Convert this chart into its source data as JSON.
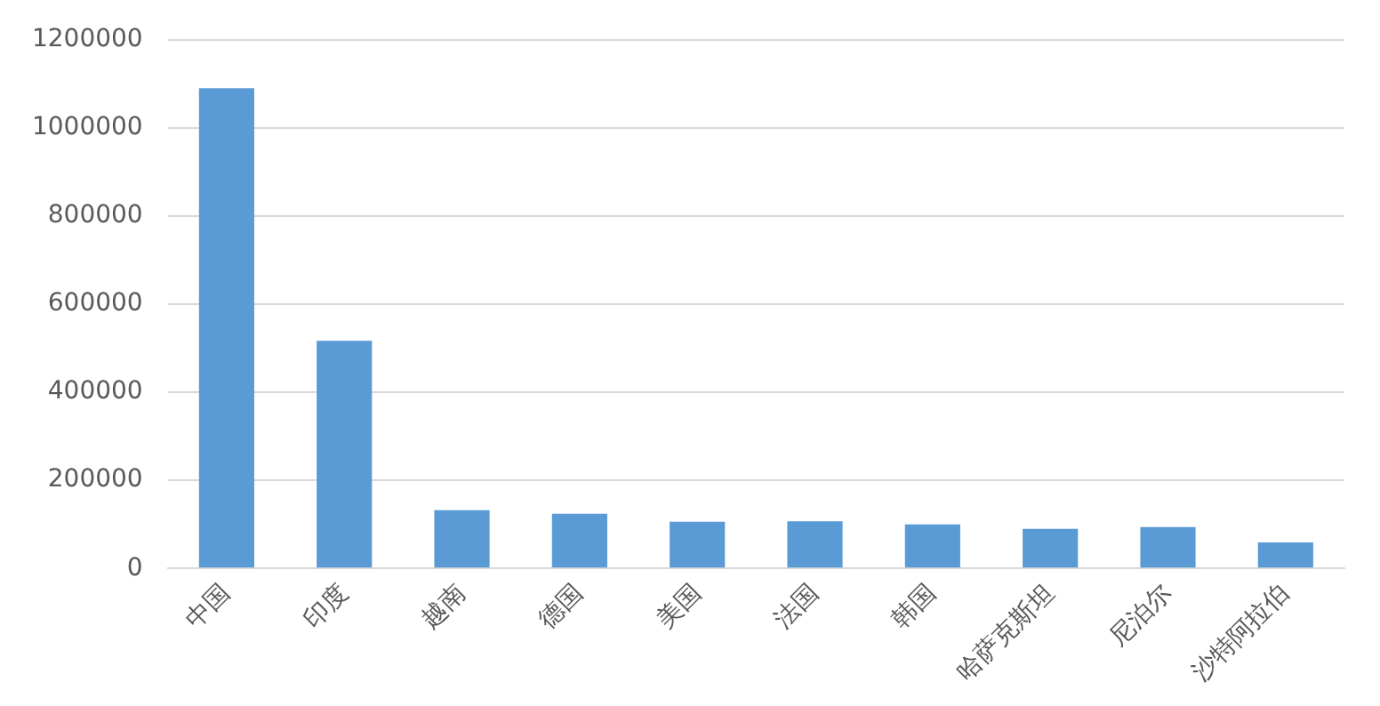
{
  "chart_data": {
    "type": "bar",
    "categories": [
      "中国",
      "印度",
      "越南",
      "德国",
      "美国",
      "法国",
      "韩国",
      "哈萨克斯坦",
      "尼泊尔",
      "沙特阿拉伯"
    ],
    "values": [
      1090000,
      517000,
      132000,
      124000,
      106000,
      107000,
      100000,
      90000,
      94000,
      59000
    ],
    "color": "#5b9bd5",
    "ylim": [
      0,
      1200000
    ],
    "yticks": [
      0,
      200000,
      400000,
      600000,
      800000,
      1000000,
      1200000
    ],
    "grid": "y",
    "legend": false
  }
}
